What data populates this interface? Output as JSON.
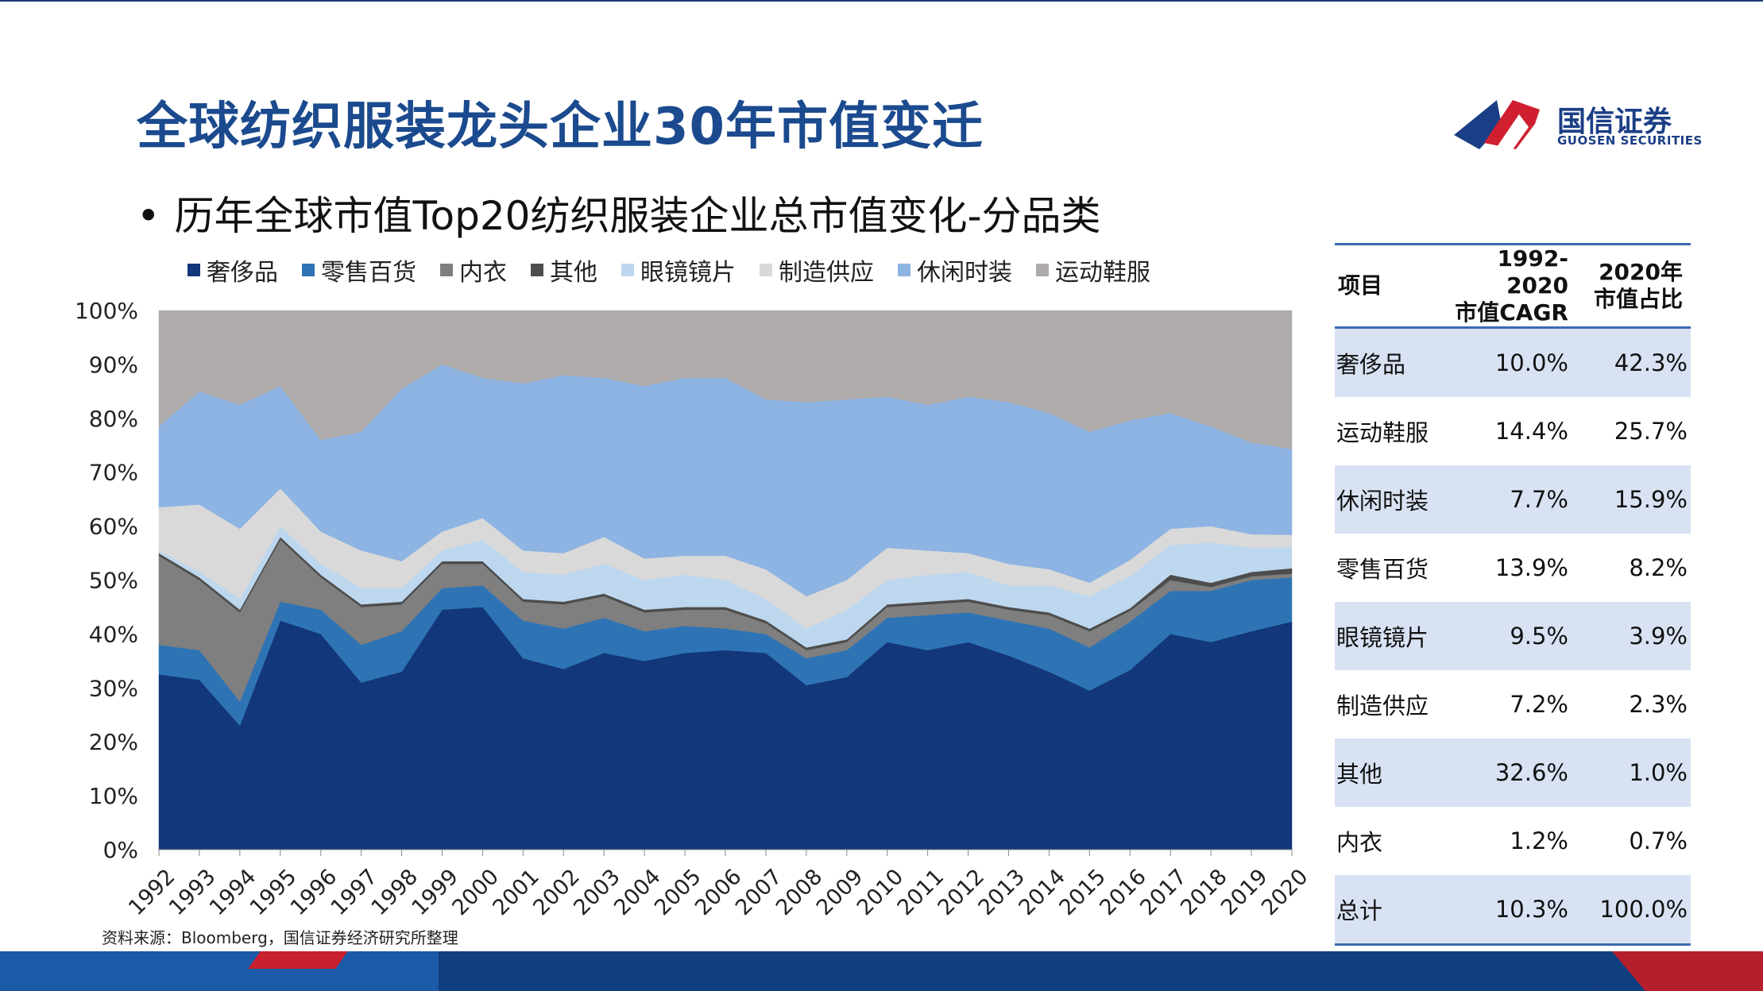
{
  "slide": {
    "title": "全球纺织服装龙头企业30年市值变迁",
    "subtitle": "历年全球市值Top20纺织服装企业总市值变化-分品类",
    "bullet": "•",
    "source": "资料来源：Bloomberg，国信证券经济研究所整理",
    "logo": {
      "name": "国信证券",
      "sub": "GUOSEN SECURITIES"
    }
  },
  "chart_data": {
    "type": "area",
    "stacked": true,
    "normalized": true,
    "x": [
      "1992",
      "1993",
      "1994",
      "1995",
      "1996",
      "1997",
      "1998",
      "1999",
      "2000",
      "2001",
      "2002",
      "2003",
      "2004",
      "2005",
      "2006",
      "2007",
      "2008",
      "2009",
      "2010",
      "2011",
      "2012",
      "2013",
      "2014",
      "2015",
      "2016",
      "2017",
      "2018",
      "2019",
      "2020"
    ],
    "yticks": [
      "0%",
      "10%",
      "20%",
      "30%",
      "40%",
      "50%",
      "60%",
      "70%",
      "80%",
      "90%",
      "100%"
    ],
    "ylim": [
      0,
      100
    ],
    "legend_position": "top",
    "series": [
      {
        "name": "奢侈品",
        "color": "#12377a",
        "values": [
          32.5,
          31.5,
          23,
          42.5,
          40,
          31,
          33,
          44.5,
          45,
          35.5,
          33.5,
          36.5,
          35,
          36.5,
          37,
          36.5,
          30.5,
          32,
          38.5,
          37,
          38.5,
          36,
          33,
          29.5,
          33.5,
          40,
          38.5,
          40.5,
          42.3
        ]
      },
      {
        "name": "零售百货",
        "color": "#2e74b5",
        "values": [
          5.5,
          5.5,
          4.5,
          3.5,
          4.5,
          7,
          7.5,
          4,
          4,
          7,
          7.5,
          6.5,
          5.5,
          5,
          4,
          3.5,
          5,
          5,
          4.5,
          6.5,
          5.5,
          6.5,
          8,
          8,
          9,
          8,
          9.5,
          9.5,
          8.2
        ]
      },
      {
        "name": "内衣",
        "color": "#7f7f7f",
        "values": [
          16.5,
          13,
          16.5,
          11.5,
          6,
          7,
          5,
          4.5,
          4,
          3.5,
          4.5,
          4,
          3.5,
          3,
          3.5,
          2,
          1.5,
          1.5,
          2,
          2,
          2,
          2,
          2.5,
          3,
          2,
          2,
          0.7,
          0.7,
          0.7
        ]
      },
      {
        "name": "其他",
        "color": "#4d4d4d",
        "values": [
          0.5,
          0.5,
          0.5,
          0.5,
          0.5,
          0.5,
          0.5,
          0.5,
          0.5,
          0.5,
          0.5,
          0.5,
          0.5,
          0.5,
          0.5,
          0.5,
          0.5,
          0.5,
          0.5,
          0.5,
          0.5,
          0.5,
          0.5,
          0.5,
          0.5,
          1,
          0.8,
          0.8,
          1.0
        ]
      },
      {
        "name": "眼镜镜片",
        "color": "#bdd7ee",
        "values": [
          0.5,
          1,
          2,
          2,
          2,
          3,
          2.5,
          2,
          4,
          5,
          5,
          5.5,
          5.5,
          6,
          5,
          4,
          3.5,
          5.5,
          4.5,
          5,
          5,
          4,
          5,
          6,
          6,
          5.5,
          7.5,
          4.5,
          3.9
        ]
      },
      {
        "name": "制造供应",
        "color": "#d9d9d9",
        "values": [
          8,
          12.5,
          13,
          7,
          6,
          7,
          5,
          3.5,
          4,
          4,
          4,
          5,
          4,
          3.5,
          4.5,
          5.5,
          6,
          5.5,
          6,
          4.5,
          3.5,
          4,
          3,
          2.5,
          3,
          3,
          3,
          2.5,
          2.3
        ]
      },
      {
        "name": "休闲时装",
        "color": "#8db4e2",
        "values": [
          15,
          21,
          23,
          19,
          17,
          22,
          32,
          31,
          26,
          31,
          33,
          29.5,
          32,
          33,
          33,
          31.5,
          36,
          33.5,
          28,
          27,
          29,
          30,
          29,
          28,
          26,
          21.5,
          18.5,
          17,
          15.9
        ]
      },
      {
        "name": "运动鞋服",
        "color": "#afabab",
        "values": [
          21.5,
          15,
          17.5,
          14,
          24,
          22.5,
          14.5,
          10,
          12.5,
          13.5,
          12,
          12.5,
          14,
          12.5,
          12.5,
          16.5,
          17,
          16.5,
          16,
          17.5,
          16,
          17,
          19,
          22.5,
          20.5,
          19,
          21.5,
          24.5,
          25.7
        ]
      }
    ]
  },
  "table": {
    "headers": [
      "项目",
      "1992-2020\n市值CAGR",
      "2020年\n市值占比"
    ],
    "rows": [
      [
        "奢侈品",
        "10.0%",
        "42.3%"
      ],
      [
        "运动鞋服",
        "14.4%",
        "25.7%"
      ],
      [
        "休闲时装",
        "7.7%",
        "15.9%"
      ],
      [
        "零售百货",
        "13.9%",
        "8.2%"
      ],
      [
        "眼镜镜片",
        "9.5%",
        "3.9%"
      ],
      [
        "制造供应",
        "7.2%",
        "2.3%"
      ],
      [
        "其他",
        "32.6%",
        "1.0%"
      ],
      [
        "内衣",
        "1.2%",
        "0.7%"
      ],
      [
        "总计",
        "10.3%",
        "100.0%"
      ]
    ]
  }
}
